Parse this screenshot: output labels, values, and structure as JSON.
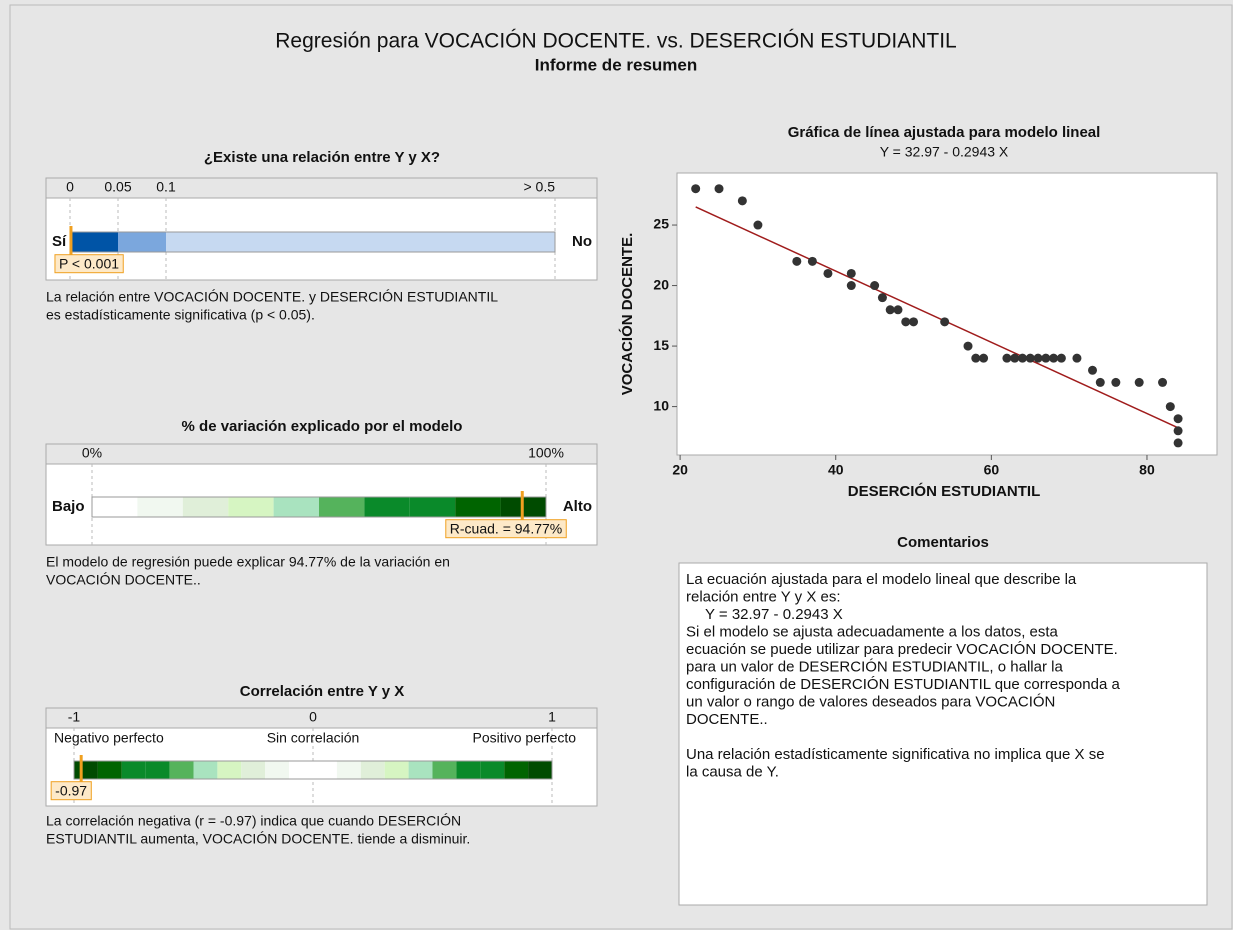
{
  "header": {
    "title": "Regresión para VOCACIÓN DOCENTE. vs. DESERCIÓN ESTUDIANTIL",
    "subtitle": "Informe de resumen"
  },
  "relation": {
    "title": "¿Existe una relación entre Y y X?",
    "ticks": [
      0,
      0.05,
      0.1,
      {
        "value": 0.5,
        "label": "> 0.5"
      }
    ],
    "left": "Sí",
    "right": "No",
    "colors": [
      "#0054a6",
      "#7ba7dd",
      "#c6d9f1"
    ],
    "p_value": {
      "value": 0.001,
      "label": "P < 0.001"
    },
    "text": [
      "La relación entre VOCACIÓN DOCENTE. y DESERCIÓN ESTUDIANTIL",
      "es estadísticamente significativa (p < 0.05)."
    ]
  },
  "variation": {
    "title": "% de variación explicado por el modelo",
    "ticks": [
      {
        "value": 0,
        "label": "0%"
      },
      {
        "value": 100,
        "label": "100%"
      }
    ],
    "left": "Bajo",
    "right": "Alto",
    "colors": [
      "#ffffff",
      "#f1f8f0",
      "#e0efd9",
      "#d6f5c2",
      "#a9e3bf",
      "#55b35c",
      "#0a8a2a",
      "#0a8a2a",
      "#006400",
      "#004b00"
    ],
    "r_squared": {
      "value": 94.77,
      "label": "R-cuad. = 94.77%"
    },
    "text": [
      "El modelo de regresión puede explicar 94.77% de la variación en",
      "VOCACIÓN DOCENTE.."
    ]
  },
  "correlation": {
    "title": "Correlación entre Y y X",
    "ticks": [
      -1,
      0,
      1
    ],
    "labels": [
      "Negativo perfecto",
      "Sin correlación",
      "Positivo perfecto"
    ],
    "colors": [
      "#004b00",
      "#006400",
      "#0a8a2a",
      "#0a8a2a",
      "#55b35c",
      "#a9e3bf",
      "#d6f5c2",
      "#e0efd9",
      "#f1f8f0",
      "#ffffff",
      "#ffffff",
      "#f1f8f0",
      "#e0efd9",
      "#d6f5c2",
      "#a9e3bf",
      "#55b35c",
      "#0a8a2a",
      "#0a8a2a",
      "#006400",
      "#004b00"
    ],
    "r": {
      "value": -0.97,
      "label": "-0.97"
    },
    "text": [
      "La correlación negativa (r = -0.97) indica que cuando DESERCIÓN",
      "ESTUDIANTIL aumenta, VOCACIÓN DOCENTE. tiende a disminuir."
    ]
  },
  "chart_data": {
    "type": "scatter",
    "title": "Gráfica de línea ajustada para modelo lineal",
    "subtitle": "Y = 32.97 - 0.2943 X",
    "x_label": "DESERCIÓN ESTUDIANTIL",
    "y_label": "VOCACIÓN DOCENTE.",
    "color": "#333333",
    "line_color": "#a01c1c",
    "intercept": 32.97,
    "slope": -0.2943,
    "x": [
      22,
      25,
      28,
      30,
      35,
      37,
      39,
      42,
      42,
      45,
      46,
      47,
      48,
      49,
      50,
      54,
      57,
      58,
      59,
      62,
      63,
      64,
      65,
      66,
      67,
      68,
      69,
      71,
      73,
      74,
      76,
      79,
      82,
      83,
      84,
      84,
      84
    ],
    "values": [
      28,
      28,
      27,
      25,
      22,
      22,
      21,
      21,
      20,
      20,
      19,
      18,
      18,
      17,
      17,
      17,
      15,
      14,
      14,
      14,
      14,
      14,
      14,
      14,
      14,
      14,
      14,
      14,
      13,
      12,
      12,
      12,
      12,
      10,
      9,
      8,
      7
    ],
    "xlim": [
      19.6,
      89
    ],
    "ylim": [
      6,
      29.3
    ],
    "xticks": [
      20,
      40,
      60,
      80
    ],
    "yticks": [
      10,
      15,
      20,
      25
    ]
  },
  "comments": {
    "title": "Comentarios",
    "paragraphs": [
      [
        "La ecuación ajustada para el modelo lineal que describe la",
        "relación entre Y y X es:",
        "Y = 32.97 - 0.2943 X",
        "Si el modelo se ajusta adecuadamente a los datos, esta",
        "ecuación se puede utilizar para predecir VOCACIÓN DOCENTE.",
        "para un valor de DESERCIÓN ESTUDIANTIL, o hallar la",
        "configuración de DESERCIÓN ESTUDIANTIL que corresponda a",
        "un valor o rango de valores deseados para VOCACIÓN",
        "DOCENTE.."
      ],
      [
        "Una relación estadísticamente significativa no implica que X se",
        "la causa de Y."
      ]
    ]
  }
}
